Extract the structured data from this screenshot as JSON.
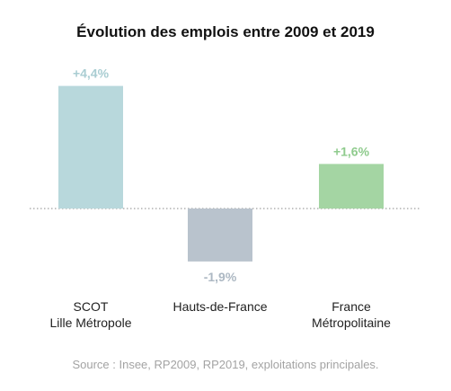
{
  "chart_data": {
    "type": "bar",
    "title": "Évolution des emplois entre 2009 et 2019",
    "categories": [
      {
        "label_lines": [
          "SCOT",
          "Lille Métropole"
        ]
      },
      {
        "label_lines": [
          "Hauts-de-France"
        ]
      },
      {
        "label_lines": [
          "France",
          "Métropolitaine"
        ]
      }
    ],
    "values": [
      4.4,
      -1.9,
      1.6
    ],
    "value_labels": [
      "+4,4%",
      "-1,9%",
      "+1,6%"
    ],
    "unit": "%",
    "bar_colors": [
      "#b8d8dc",
      "#b9c3cd",
      "#a4d5a3"
    ],
    "value_label_colors": [
      "#a9cdd2",
      "#adb8c3",
      "#8fcb8d"
    ],
    "baseline": 0,
    "baseline_style": "dotted",
    "grid": false,
    "legend": "none",
    "source": "Source : Insee, RP2009, RP2019, exploitations principales."
  }
}
